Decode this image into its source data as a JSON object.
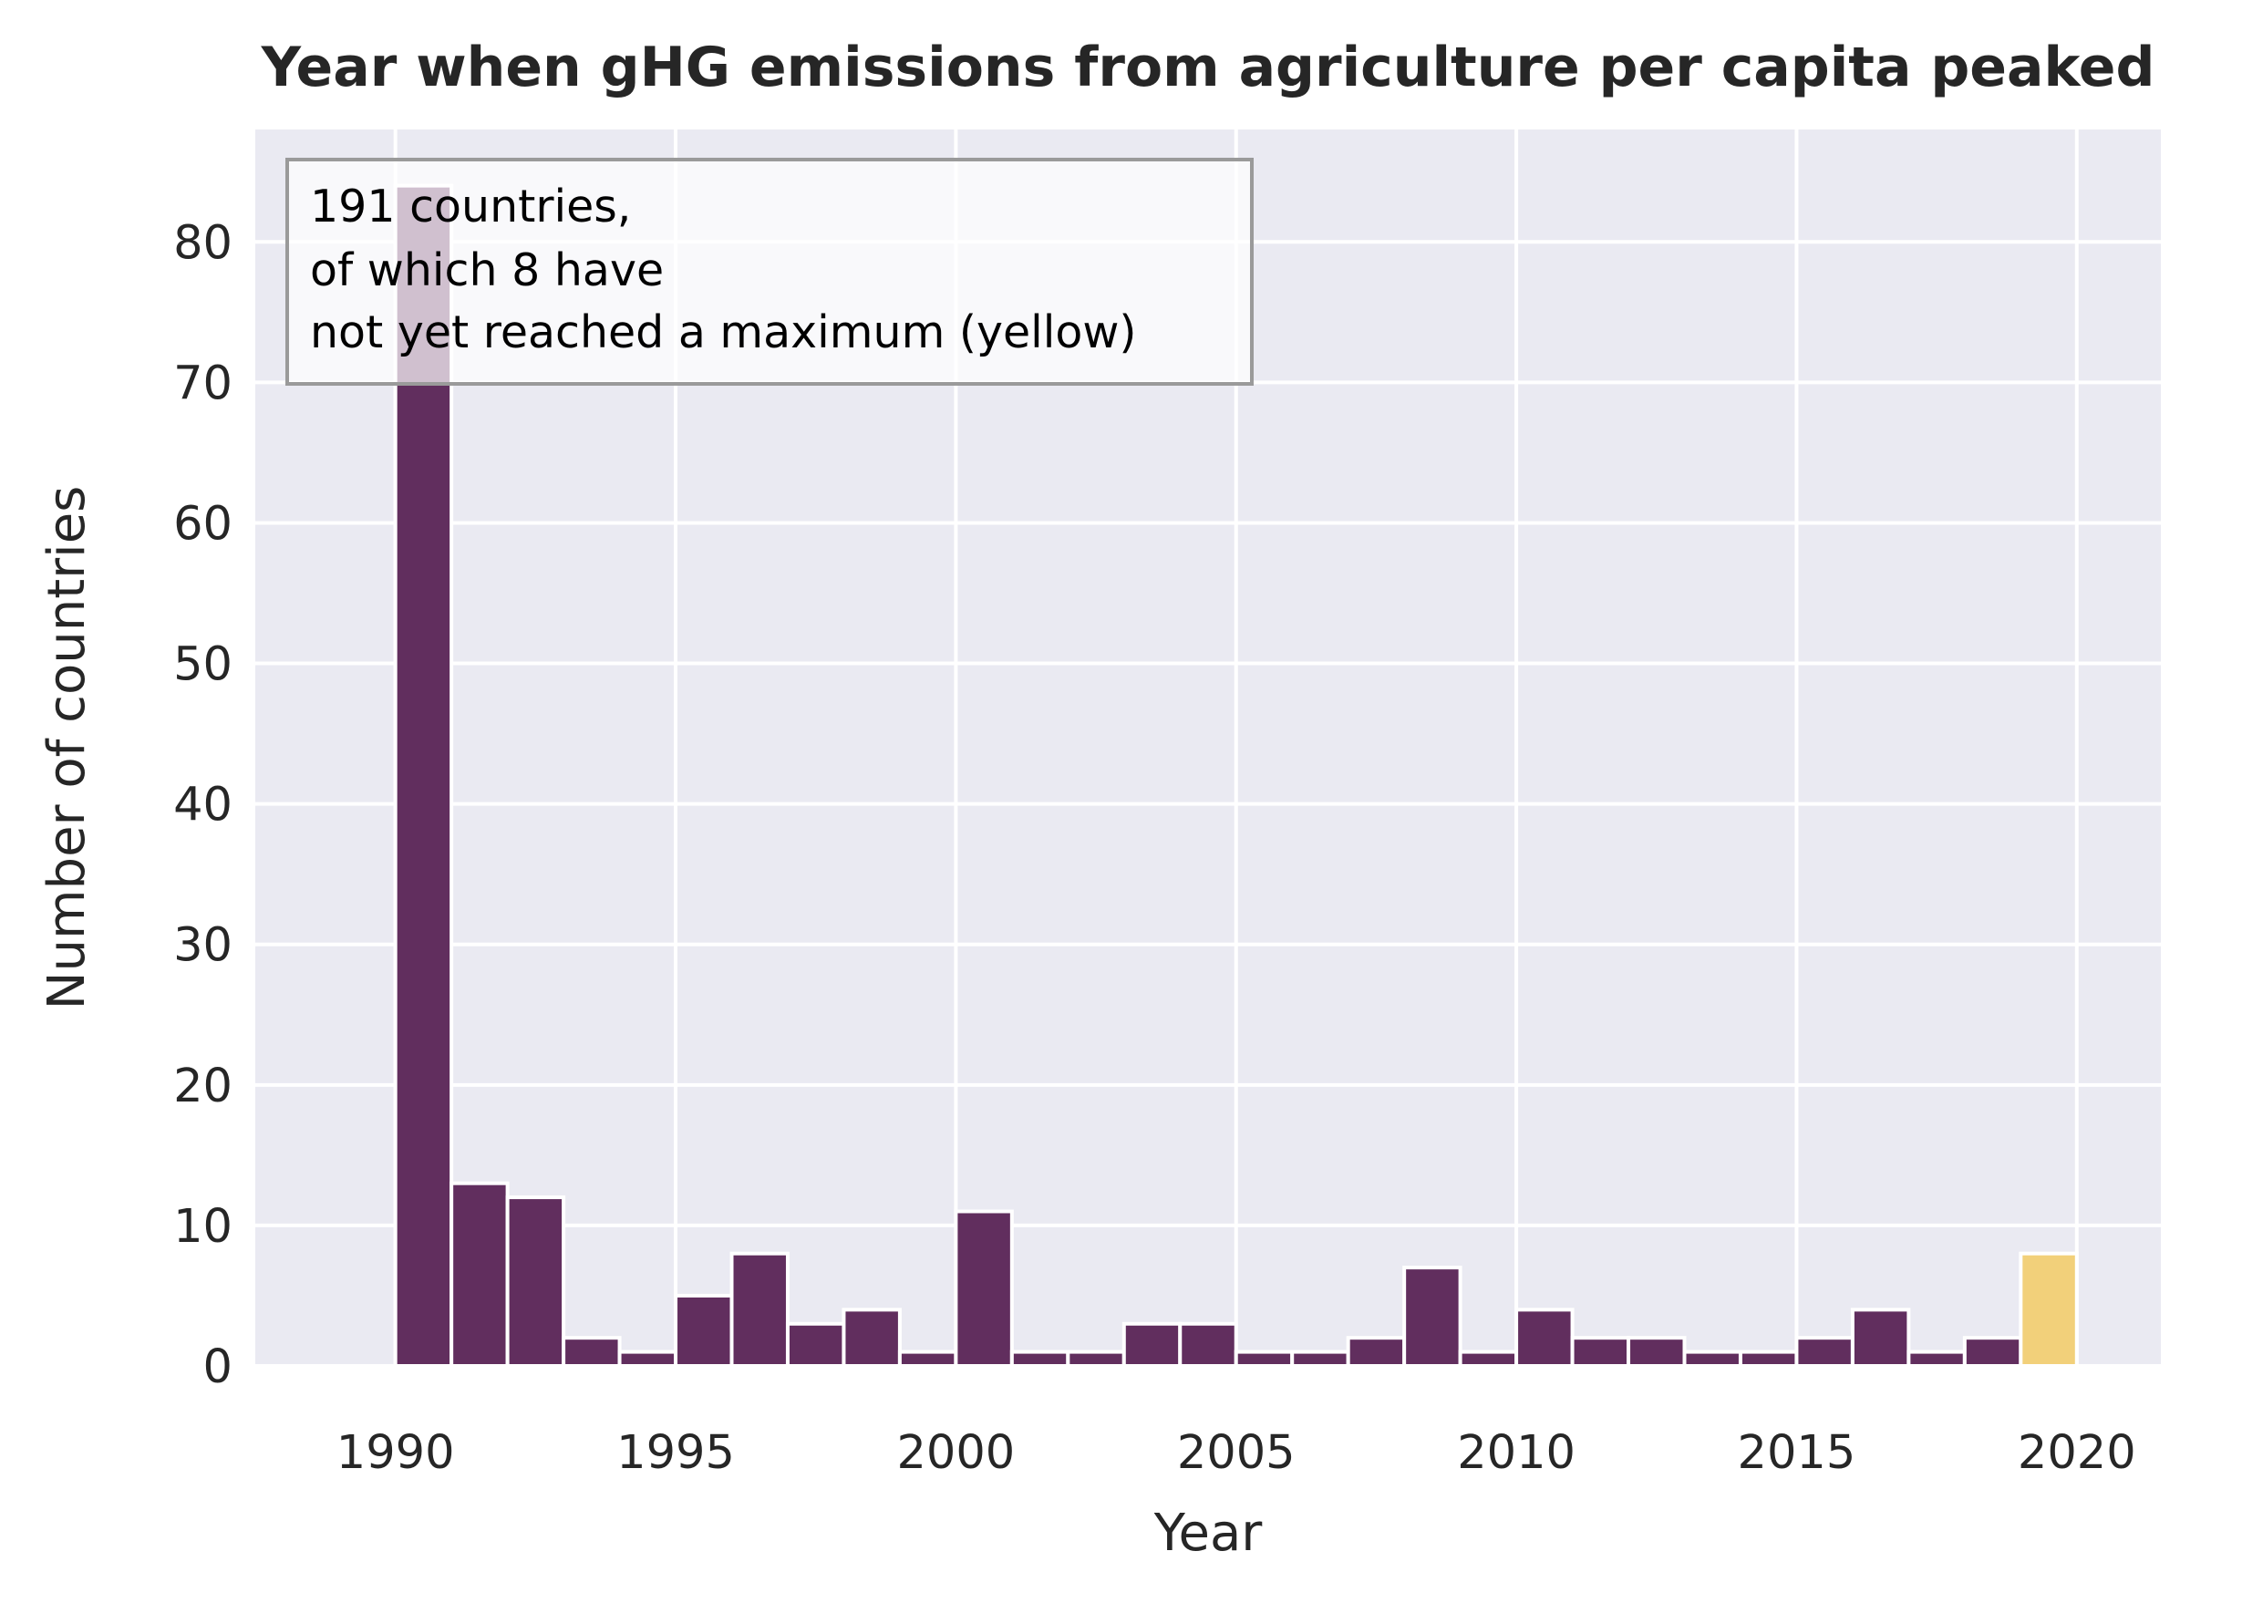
{
  "chart_data": {
    "type": "bar",
    "title": "Year when gHG emissions from agriculture per capita peaked",
    "xlabel": "Year",
    "ylabel": "Number of countries",
    "xlim": [
      1987.5,
      2021.5
    ],
    "ylim": [
      0,
      88
    ],
    "x_ticks": [
      1990,
      1995,
      2000,
      2005,
      2010,
      2015,
      2020
    ],
    "y_ticks": [
      0,
      10,
      20,
      30,
      40,
      50,
      60,
      70,
      80
    ],
    "grid": true,
    "bins": [
      {
        "x": 1990,
        "value": 84
      },
      {
        "x": 1991,
        "value": 13
      },
      {
        "x": 1992,
        "value": 12
      },
      {
        "x": 1993,
        "value": 2
      },
      {
        "x": 1994,
        "value": 1
      },
      {
        "x": 1995,
        "value": 5
      },
      {
        "x": 1996,
        "value": 8
      },
      {
        "x": 1997,
        "value": 3
      },
      {
        "x": 1998,
        "value": 4
      },
      {
        "x": 1999,
        "value": 1
      },
      {
        "x": 2000,
        "value": 11
      },
      {
        "x": 2001,
        "value": 1
      },
      {
        "x": 2002,
        "value": 1
      },
      {
        "x": 2003,
        "value": 3
      },
      {
        "x": 2004,
        "value": 3
      },
      {
        "x": 2005,
        "value": 1
      },
      {
        "x": 2006,
        "value": 1
      },
      {
        "x": 2007,
        "value": 2
      },
      {
        "x": 2008,
        "value": 7
      },
      {
        "x": 2009,
        "value": 1
      },
      {
        "x": 2010,
        "value": 4
      },
      {
        "x": 2011,
        "value": 2
      },
      {
        "x": 2012,
        "value": 2
      },
      {
        "x": 2013,
        "value": 1
      },
      {
        "x": 2014,
        "value": 1
      },
      {
        "x": 2015,
        "value": 2
      },
      {
        "x": 2016,
        "value": 4
      },
      {
        "x": 2017,
        "value": 1
      },
      {
        "x": 2018,
        "value": 2
      },
      {
        "x": 2019,
        "value": 8,
        "highlight": true
      }
    ],
    "annotation": {
      "lines": [
        "191 countries,",
        "of which 8 have",
        "not yet reached a maximum (yellow)"
      ],
      "placement": "top-left"
    },
    "colors": {
      "bar": "#612e5e",
      "highlight": "#f2d07a",
      "plot_background": "#eaeaf2",
      "grid": "#ffffff"
    }
  }
}
